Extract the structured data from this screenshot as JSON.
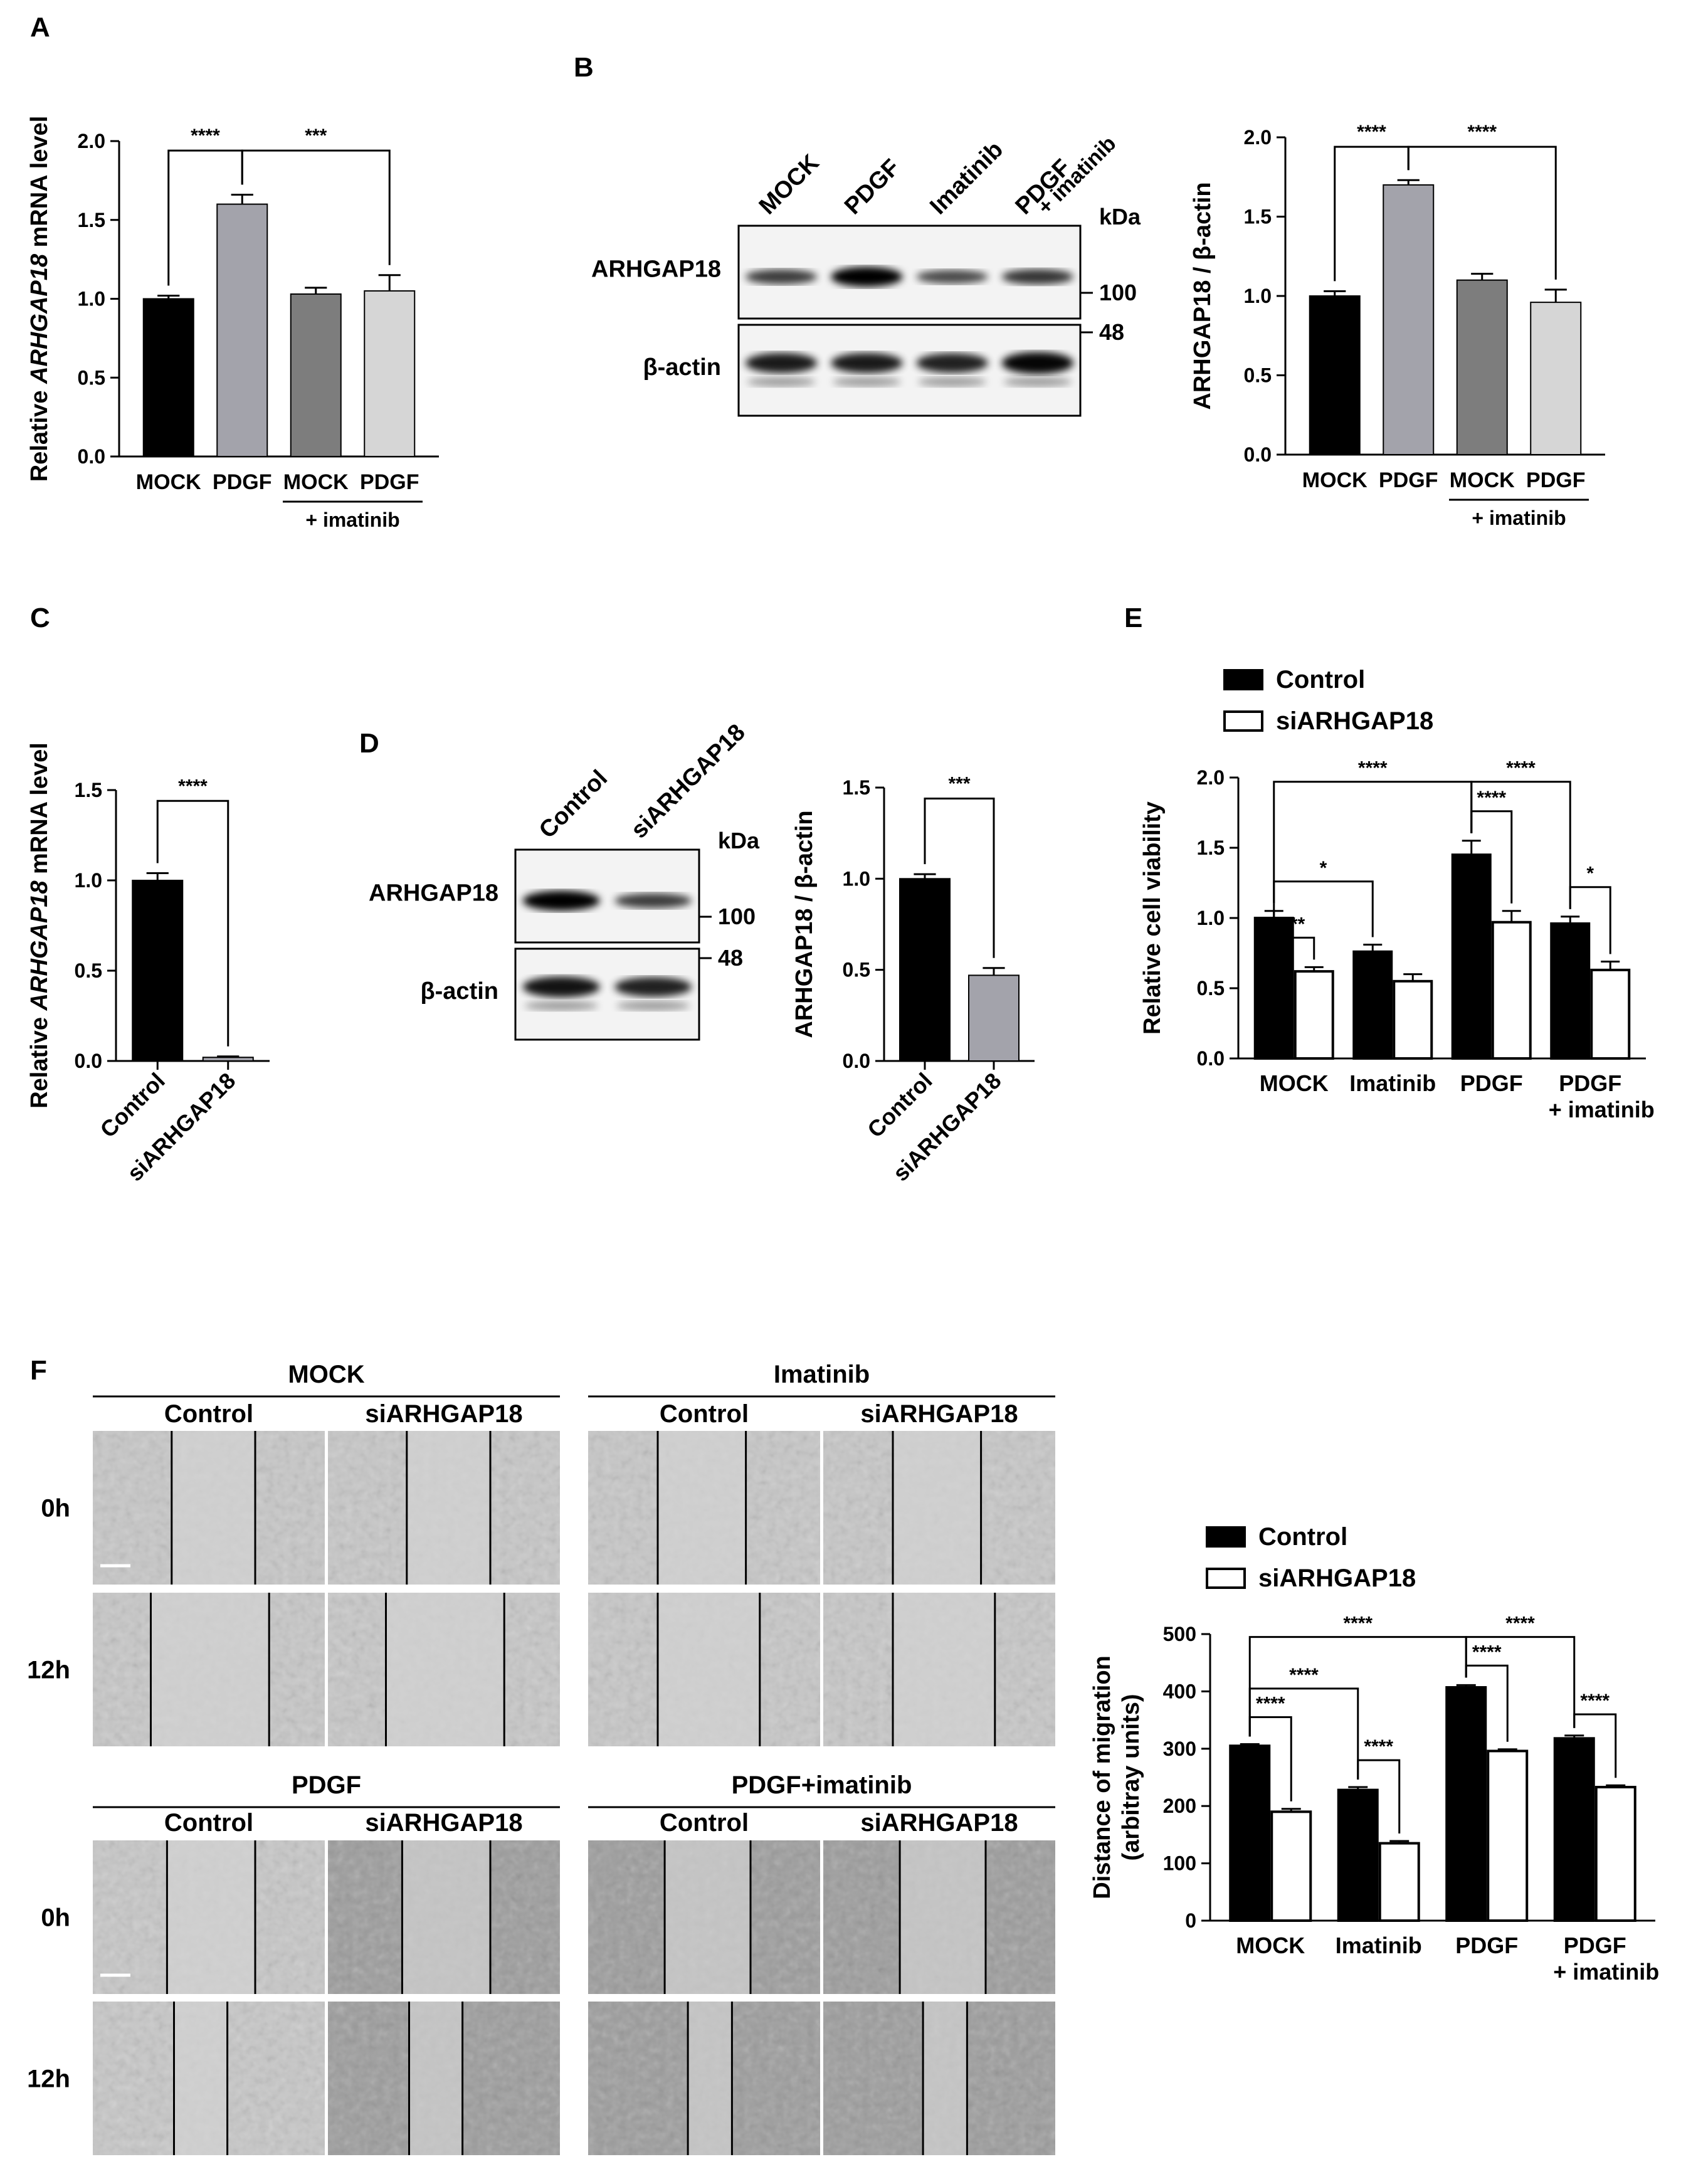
{
  "panel_letters": {
    "A": "A",
    "B": "B",
    "C": "C",
    "D": "D",
    "E": "E",
    "F": "F"
  },
  "colors": {
    "black": "#000000",
    "mid_gray": "#a3a3ab",
    "dark_gray": "#7d7d7d",
    "light_gray": "#d6d6d6",
    "white": "#ffffff"
  },
  "blots": {
    "B": {
      "lanes": [
        "MOCK",
        "PDGF",
        "Imatinib",
        "PDGF"
      ],
      "lane4_sub": "+ imatinib",
      "rows": [
        "ARHGAP18",
        "β-actin"
      ],
      "kda": "kDa",
      "marker_100": "100",
      "marker_48": "48",
      "band_intensity_top": [
        0.55,
        1.0,
        0.45,
        0.6
      ],
      "band_intensity_bottom": [
        0.8,
        0.8,
        0.75,
        0.95
      ]
    },
    "D": {
      "lanes": [
        "Control",
        "siARHGAP18"
      ],
      "rows": [
        "ARHGAP18",
        "β-actin"
      ],
      "kda": "kDa",
      "marker_100": "100",
      "marker_48": "48",
      "band_intensity_top": [
        1.0,
        0.55
      ],
      "band_intensity_bottom": [
        0.85,
        0.75
      ]
    }
  },
  "micro": {
    "groups": [
      "MOCK",
      "Imatinib",
      "PDGF",
      "PDGF+imatinib"
    ],
    "subs": [
      "Control",
      "siARHGAP18"
    ],
    "times": [
      "0h",
      "12h"
    ]
  },
  "chart_data": [
    {
      "id": "A",
      "type": "bar",
      "ylabel_pre": "Relative ",
      "ylabel_italic": "ARHGAP18",
      "ylabel_post": " mRNA level",
      "ylim": [
        0,
        2.0
      ],
      "yticks": [
        "0.0",
        "0.5",
        "1.0",
        "1.5",
        "2.0"
      ],
      "categories": [
        "MOCK",
        "PDGF",
        "MOCK",
        "PDGF"
      ],
      "group_label": "+ imatinib",
      "values": [
        1.0,
        1.6,
        1.03,
        1.05
      ],
      "errors": [
        0.02,
        0.06,
        0.04,
        0.1
      ],
      "colors": [
        "#000000",
        "#a3a3ab",
        "#7d7d7d",
        "#d6d6d6"
      ],
      "significance": [
        {
          "from": 0,
          "to": 1,
          "label": "****"
        },
        {
          "from": 1,
          "to": 3,
          "label": "***"
        }
      ]
    },
    {
      "id": "B",
      "type": "bar",
      "ylabel": "ARHGAP18 / β-actin",
      "ylim": [
        0,
        2.0
      ],
      "yticks": [
        "0.0",
        "0.5",
        "1.0",
        "1.5",
        "2.0"
      ],
      "categories": [
        "MOCK",
        "PDGF",
        "MOCK",
        "PDGF"
      ],
      "group_label": "+ imatinib",
      "values": [
        1.0,
        1.7,
        1.1,
        0.96
      ],
      "errors": [
        0.03,
        0.03,
        0.04,
        0.08
      ],
      "colors": [
        "#000000",
        "#a3a3ab",
        "#7d7d7d",
        "#d6d6d6"
      ],
      "significance": [
        {
          "from": 0,
          "to": 1,
          "label": "****"
        },
        {
          "from": 1,
          "to": 3,
          "label": "****"
        }
      ]
    },
    {
      "id": "C",
      "type": "bar",
      "ylabel_pre": "Relative ",
      "ylabel_italic": "ARHGAP18",
      "ylabel_post": " mRNA level",
      "ylim": [
        0,
        1.5
      ],
      "yticks": [
        "0.0",
        "0.5",
        "1.0",
        "1.5"
      ],
      "categories": [
        "Control",
        "siARHGAP18"
      ],
      "values": [
        1.0,
        0.02
      ],
      "errors": [
        0.04,
        0.005
      ],
      "colors": [
        "#000000",
        "#a3a3ab"
      ],
      "significance": [
        {
          "from": 0,
          "to": 1,
          "label": "****"
        }
      ]
    },
    {
      "id": "D",
      "type": "bar",
      "ylabel": "ARHGAP18 / β-actin",
      "ylim": [
        0,
        1.5
      ],
      "yticks": [
        "0.0",
        "0.5",
        "1.0",
        "1.5"
      ],
      "categories": [
        "Control",
        "siARHGAP18"
      ],
      "values": [
        1.0,
        0.47
      ],
      "errors": [
        0.025,
        0.04
      ],
      "colors": [
        "#000000",
        "#a3a3ab"
      ],
      "significance": [
        {
          "from": 0,
          "to": 1,
          "label": "***"
        }
      ]
    },
    {
      "id": "E",
      "type": "bar",
      "ylabel": "Relative cell viability",
      "ylim": [
        0,
        2.0
      ],
      "yticks": [
        "0.0",
        "0.5",
        "1.0",
        "1.5",
        "2.0"
      ],
      "categories": [
        "MOCK",
        "Imatinib",
        "PDGF",
        "PDGF"
      ],
      "category_sub": [
        "",
        "",
        "",
        "+ imatinib"
      ],
      "series": [
        {
          "name": "Control",
          "values": [
            1.0,
            0.76,
            1.45,
            0.96
          ],
          "errors": [
            0.05,
            0.05,
            0.1,
            0.05
          ]
        },
        {
          "name": "siARHGAP18",
          "values": [
            0.62,
            0.55,
            0.97,
            0.63
          ],
          "errors": [
            0.03,
            0.05,
            0.08,
            0.06
          ]
        }
      ],
      "significance": [
        {
          "a": [
            0,
            0
          ],
          "b": [
            0,
            1
          ],
          "label": "***",
          "level": 0.86
        },
        {
          "a": [
            0,
            0
          ],
          "b": [
            1,
            0
          ],
          "label": "*",
          "level": 1.26
        },
        {
          "a": [
            0,
            0
          ],
          "b": [
            2,
            0
          ],
          "label": "****",
          "level": 1.97
        },
        {
          "a": [
            2,
            0
          ],
          "b": [
            2,
            1
          ],
          "label": "****",
          "level": 1.76
        },
        {
          "a": [
            2,
            0
          ],
          "b": [
            3,
            0
          ],
          "label": "****",
          "level": 1.97
        },
        {
          "a": [
            3,
            0
          ],
          "b": [
            3,
            1
          ],
          "label": "*",
          "level": 1.22
        }
      ],
      "legend_position": "top-left"
    },
    {
      "id": "F",
      "type": "bar",
      "ylabel_line1": "Distance of migration",
      "ylabel_line2": "(arbitray units)",
      "ylim": [
        0,
        500
      ],
      "yticks": [
        "0",
        "100",
        "200",
        "300",
        "400",
        "500"
      ],
      "categories": [
        "MOCK",
        "Imatinib",
        "PDGF",
        "PDGF"
      ],
      "category_sub": [
        "",
        "",
        "",
        "+ imatinib"
      ],
      "series": [
        {
          "name": "Control",
          "values": [
            305,
            228,
            407,
            318
          ],
          "errors": [
            3,
            5,
            4,
            5
          ]
        },
        {
          "name": "siARHGAP18",
          "values": [
            190,
            135,
            296,
            233
          ],
          "errors": [
            5,
            4,
            3,
            3
          ]
        }
      ],
      "significance": [
        {
          "a": [
            0,
            0
          ],
          "b": [
            0,
            1
          ],
          "label": "****",
          "level": 355
        },
        {
          "a": [
            0,
            0
          ],
          "b": [
            1,
            0
          ],
          "label": "****",
          "level": 405
        },
        {
          "a": [
            0,
            0
          ],
          "b": [
            2,
            0
          ],
          "label": "****",
          "level": 495
        },
        {
          "a": [
            2,
            0
          ],
          "b": [
            2,
            1
          ],
          "label": "****",
          "level": 445
        },
        {
          "a": [
            2,
            0
          ],
          "b": [
            3,
            0
          ],
          "label": "****",
          "level": 495
        },
        {
          "a": [
            1,
            0
          ],
          "b": [
            1,
            1
          ],
          "label": "****",
          "level": 280
        },
        {
          "a": [
            3,
            0
          ],
          "b": [
            3,
            1
          ],
          "label": "****",
          "level": 360
        }
      ],
      "legend_position": "top-left"
    }
  ]
}
